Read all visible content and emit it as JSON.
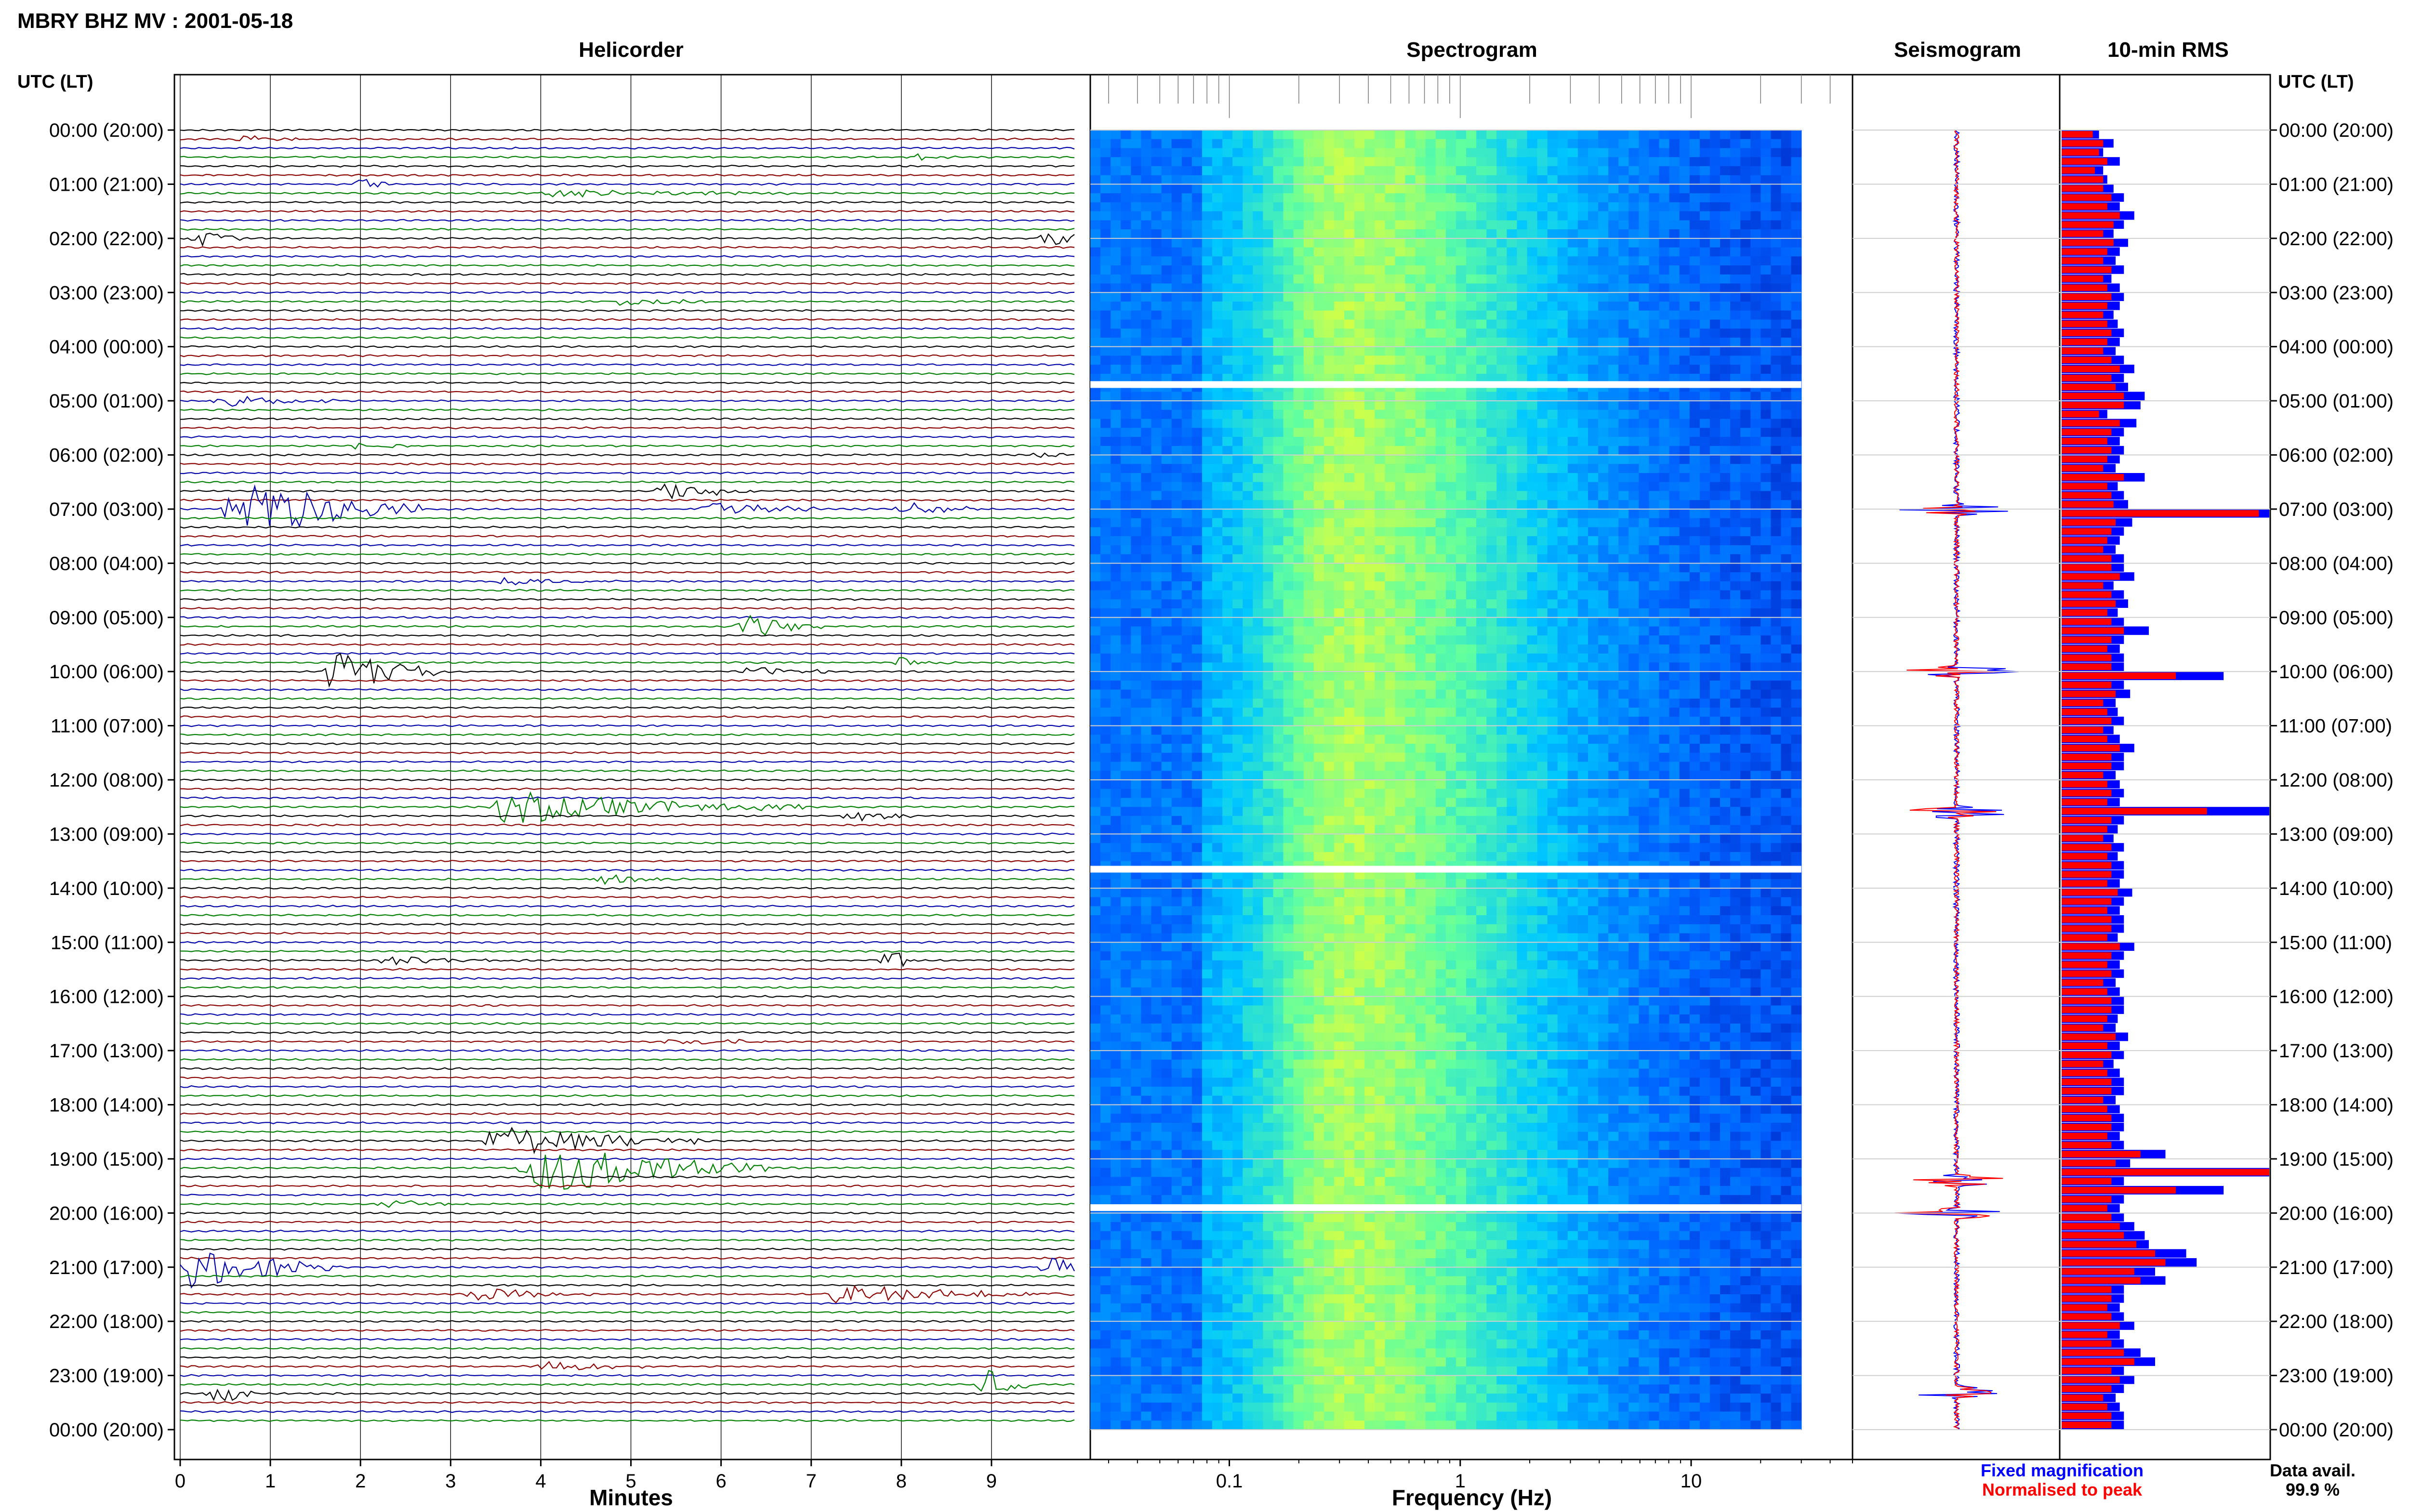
{
  "figure": {
    "title": "MBRY BHZ MV : 2001-05-18",
    "data_avail_label": "Data avail.",
    "data_avail_value": "99.9 %",
    "legend": {
      "fixed_label": "Fixed magnification",
      "normalised_label": "Normalised to peak",
      "fixed_color": "#0000ff",
      "normalised_color": "#ff0000"
    }
  },
  "panels": {
    "helicorder_title": "Helicorder",
    "spectrogram_title": "Spectrogram",
    "seismogram_title": "Seismogram",
    "rms_title": "10-min RMS",
    "utc_label_left": "UTC (LT)",
    "utc_label_right": "UTC (LT)",
    "helicorder_xlabel": "Minutes",
    "spectrogram_xlabel": "Frequency (Hz)"
  },
  "chart_data": [
    {
      "type": "heatmap",
      "name": "helicorder",
      "title": "Helicorder",
      "xlabel": "Minutes",
      "ylabel": "UTC (LT)",
      "xlim": [
        0,
        10
      ],
      "x_ticks": [
        "0",
        "1",
        "2",
        "3",
        "4",
        "5",
        "6",
        "7",
        "8",
        "9"
      ],
      "y_ticks": [
        "00:00 (20:00)",
        "01:00 (21:00)",
        "02:00 (22:00)",
        "03:00 (23:00)",
        "04:00 (00:00)",
        "05:00 (01:00)",
        "06:00 (02:00)",
        "07:00 (03:00)",
        "08:00 (04:00)",
        "09:00 (05:00)",
        "10:00 (06:00)",
        "11:00 (07:00)",
        "12:00 (08:00)",
        "13:00 (09:00)",
        "14:00 (10:00)",
        "15:00 (11:00)",
        "16:00 (12:00)",
        "17:00 (13:00)",
        "18:00 (14:00)",
        "19:00 (15:00)",
        "20:00 (16:00)",
        "21:00 (17:00)",
        "22:00 (18:00)",
        "23:00 (19:00)",
        "00:00 (20:00)"
      ],
      "trace_minutes": 10,
      "traces": 144,
      "trace_colors": [
        "#000000",
        "#8b0000",
        "#0000aa",
        "#008000"
      ],
      "events": [
        {
          "trace": 1,
          "minute": 0.6,
          "amp": 0.5,
          "dur": 0.9
        },
        {
          "trace": 3,
          "minute": 8.1,
          "amp": 0.4,
          "dur": 0.6
        },
        {
          "trace": 6,
          "minute": 1.9,
          "amp": 0.9,
          "dur": 0.4
        },
        {
          "trace": 7,
          "minute": 4.0,
          "amp": 0.5,
          "dur": 3.2
        },
        {
          "trace": 12,
          "minute": 0.1,
          "amp": 1.0,
          "dur": 0.6
        },
        {
          "trace": 12,
          "minute": 9.6,
          "amp": 1.1,
          "dur": 0.6
        },
        {
          "trace": 19,
          "minute": 4.8,
          "amp": 0.6,
          "dur": 1.2
        },
        {
          "trace": 30,
          "minute": 0.3,
          "amp": 0.8,
          "dur": 1.5
        },
        {
          "trace": 35,
          "minute": 1.9,
          "amp": 0.6,
          "dur": 0.8
        },
        {
          "trace": 36,
          "minute": 9.5,
          "amp": 0.3,
          "dur": 0.7
        },
        {
          "trace": 40,
          "minute": 5.3,
          "amp": 1.2,
          "dur": 1.2
        },
        {
          "trace": 42,
          "minute": 0.5,
          "amp": 4.5,
          "dur": 2.2
        },
        {
          "trace": 42,
          "minute": 5.8,
          "amp": 1.3,
          "dur": 1.3
        },
        {
          "trace": 42,
          "minute": 8.0,
          "amp": 0.9,
          "dur": 1.0
        },
        {
          "trace": 50,
          "minute": 3.5,
          "amp": 0.5,
          "dur": 1.4
        },
        {
          "trace": 55,
          "minute": 6.2,
          "amp": 1.6,
          "dur": 1.0
        },
        {
          "trace": 59,
          "minute": 7.9,
          "amp": 0.8,
          "dur": 0.7
        },
        {
          "trace": 60,
          "minute": 1.6,
          "amp": 3.0,
          "dur": 1.4
        },
        {
          "trace": 60,
          "minute": 6.3,
          "amp": 0.8,
          "dur": 1.0
        },
        {
          "trace": 75,
          "minute": 3.5,
          "amp": 2.2,
          "dur": 3.5
        },
        {
          "trace": 76,
          "minute": 7.4,
          "amp": 0.8,
          "dur": 0.8
        },
        {
          "trace": 83,
          "minute": 4.6,
          "amp": 0.6,
          "dur": 1.0
        },
        {
          "trace": 92,
          "minute": 2.2,
          "amp": 0.6,
          "dur": 1.6
        },
        {
          "trace": 92,
          "minute": 7.8,
          "amp": 1.5,
          "dur": 0.4
        },
        {
          "trace": 101,
          "minute": 5.4,
          "amp": 0.6,
          "dur": 1.3
        },
        {
          "trace": 112,
          "minute": 3.4,
          "amp": 2.2,
          "dur": 2.5
        },
        {
          "trace": 115,
          "minute": 3.8,
          "amp": 4.0,
          "dur": 2.8
        },
        {
          "trace": 119,
          "minute": 2.2,
          "amp": 0.5,
          "dur": 1.2
        },
        {
          "trace": 126,
          "minute": 0.0,
          "amp": 3.0,
          "dur": 1.8
        },
        {
          "trace": 126,
          "minute": 9.6,
          "amp": 2.0,
          "dur": 0.5
        },
        {
          "trace": 129,
          "minute": 3.2,
          "amp": 0.8,
          "dur": 1.5
        },
        {
          "trace": 129,
          "minute": 7.2,
          "amp": 1.2,
          "dur": 3.0
        },
        {
          "trace": 137,
          "minute": 4.0,
          "amp": 0.8,
          "dur": 1.2
        },
        {
          "trace": 139,
          "minute": 8.9,
          "amp": 1.8,
          "dur": 0.6
        },
        {
          "trace": 140,
          "minute": 0.3,
          "amp": 1.4,
          "dur": 0.5
        }
      ]
    },
    {
      "type": "heatmap",
      "name": "spectrogram",
      "title": "Spectrogram",
      "xlabel": "Frequency (Hz)",
      "x_scale": "log",
      "xlim": [
        0.025,
        50
      ],
      "x_ticks": [
        "0.1",
        "1",
        "10"
      ],
      "colormap": [
        "#0000a0",
        "#0060ff",
        "#00c8ff",
        "#60ffa0",
        "#f0ff30"
      ],
      "energy_peak_hz": 0.3,
      "data_end_hz": 30,
      "gaps_utc_hours": [
        4.7,
        13.65,
        19.9
      ]
    },
    {
      "type": "line",
      "name": "seismogram",
      "title": "Seismogram",
      "series": [
        {
          "name": "Fixed magnification",
          "color": "#0000ff"
        },
        {
          "name": "Normalised to peak",
          "color": "#ff0000"
        }
      ],
      "spikes_utc_hours": [
        7.0,
        10.0,
        12.6,
        19.4,
        20.0,
        23.3
      ]
    },
    {
      "type": "bar",
      "name": "rms",
      "title": "10-min RMS",
      "orientation": "horizontal",
      "bins": 144,
      "series": [
        {
          "name": "Fixed magnification",
          "color": "#0000ff"
        },
        {
          "name": "Normalised to peak",
          "color": "#ff0000"
        }
      ],
      "xlim": [
        0,
        1
      ],
      "fixed_values": [
        0.18,
        0.25,
        0.2,
        0.28,
        0.2,
        0.22,
        0.25,
        0.3,
        0.28,
        0.35,
        0.3,
        0.25,
        0.32,
        0.28,
        0.26,
        0.3,
        0.24,
        0.28,
        0.3,
        0.28,
        0.25,
        0.27,
        0.3,
        0.28,
        0.26,
        0.3,
        0.35,
        0.3,
        0.32,
        0.4,
        0.38,
        0.22,
        0.36,
        0.3,
        0.28,
        0.3,
        0.28,
        0.26,
        0.4,
        0.27,
        0.3,
        0.32,
        1.0,
        0.34,
        0.3,
        0.28,
        0.26,
        0.3,
        0.3,
        0.35,
        0.25,
        0.3,
        0.32,
        0.27,
        0.3,
        0.42,
        0.3,
        0.28,
        0.3,
        0.3,
        0.78,
        0.3,
        0.33,
        0.26,
        0.27,
        0.3,
        0.25,
        0.28,
        0.35,
        0.3,
        0.3,
        0.26,
        0.28,
        0.3,
        0.28,
        1.0,
        0.3,
        0.27,
        0.25,
        0.3,
        0.27,
        0.3,
        0.3,
        0.28,
        0.34,
        0.3,
        0.28,
        0.3,
        0.3,
        0.27,
        0.35,
        0.3,
        0.28,
        0.3,
        0.26,
        0.28,
        0.3,
        0.3,
        0.27,
        0.26,
        0.32,
        0.28,
        0.3,
        0.25,
        0.28,
        0.3,
        0.3,
        0.26,
        0.28,
        0.3,
        0.3,
        0.28,
        0.3,
        0.5,
        0.33,
        1.0,
        0.3,
        0.78,
        0.3,
        0.28,
        0.3,
        0.35,
        0.4,
        0.42,
        0.6,
        0.65,
        0.45,
        0.5,
        0.3,
        0.3,
        0.28,
        0.3,
        0.35,
        0.28,
        0.3,
        0.38,
        0.45,
        0.3,
        0.35,
        0.3,
        0.26,
        0.28,
        0.3,
        0.3
      ],
      "normalised_values": [
        0.15,
        0.2,
        0.18,
        0.22,
        0.16,
        0.2,
        0.2,
        0.24,
        0.22,
        0.28,
        0.25,
        0.2,
        0.25,
        0.22,
        0.2,
        0.24,
        0.2,
        0.22,
        0.24,
        0.22,
        0.2,
        0.22,
        0.24,
        0.22,
        0.2,
        0.24,
        0.28,
        0.24,
        0.26,
        0.3,
        0.3,
        0.18,
        0.28,
        0.24,
        0.22,
        0.24,
        0.22,
        0.2,
        0.3,
        0.22,
        0.24,
        0.25,
        0.95,
        0.26,
        0.24,
        0.22,
        0.2,
        0.24,
        0.24,
        0.28,
        0.2,
        0.24,
        0.26,
        0.22,
        0.24,
        0.3,
        0.24,
        0.22,
        0.24,
        0.24,
        0.55,
        0.24,
        0.26,
        0.2,
        0.22,
        0.24,
        0.2,
        0.22,
        0.28,
        0.24,
        0.24,
        0.2,
        0.22,
        0.24,
        0.22,
        0.7,
        0.24,
        0.22,
        0.2,
        0.24,
        0.22,
        0.24,
        0.24,
        0.22,
        0.27,
        0.24,
        0.22,
        0.24,
        0.24,
        0.22,
        0.28,
        0.24,
        0.22,
        0.24,
        0.2,
        0.22,
        0.24,
        0.24,
        0.22,
        0.2,
        0.26,
        0.22,
        0.24,
        0.2,
        0.22,
        0.24,
        0.24,
        0.2,
        0.22,
        0.24,
        0.24,
        0.22,
        0.24,
        0.38,
        0.26,
        1.0,
        0.24,
        0.55,
        0.24,
        0.22,
        0.24,
        0.28,
        0.3,
        0.36,
        0.45,
        0.5,
        0.35,
        0.38,
        0.24,
        0.24,
        0.22,
        0.24,
        0.28,
        0.22,
        0.24,
        0.3,
        0.35,
        0.24,
        0.28,
        0.24,
        0.2,
        0.22,
        0.24,
        0.24
      ]
    }
  ]
}
